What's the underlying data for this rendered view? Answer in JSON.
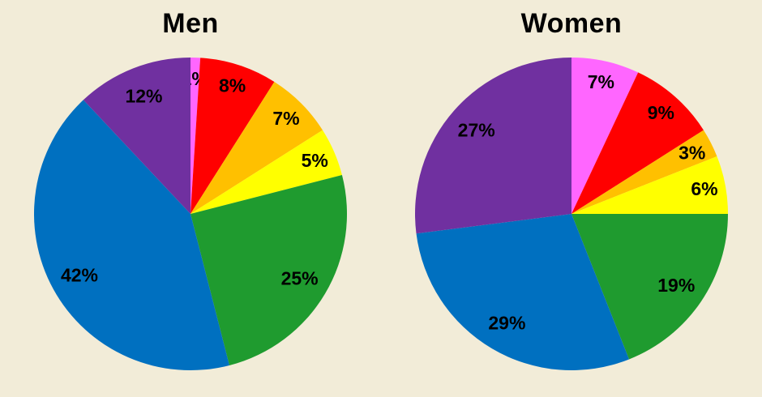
{
  "page": {
    "background_color": "#F2ECD8",
    "text_color": "#000000"
  },
  "chart_data": [
    {
      "type": "pie",
      "title": "Men",
      "values": [
        1,
        8,
        7,
        5,
        25,
        42,
        12
      ],
      "labels": [
        "1%",
        "8%",
        "7%",
        "5%",
        "25%",
        "42%",
        "12%"
      ],
      "colors": [
        "#FF66FF",
        "#FF0000",
        "#FFC000",
        "#FFFF00",
        "#1F9B2F",
        "#0070C0",
        "#7030A0"
      ],
      "segment_names": [
        "magenta",
        "red",
        "orange",
        "yellow",
        "green",
        "blue",
        "purple"
      ],
      "start_angle_deg": 0,
      "direction": "clockwise",
      "legend": "none",
      "label_position": "inside",
      "label_color": "#000000"
    },
    {
      "type": "pie",
      "title": "Women",
      "values": [
        7,
        9,
        3,
        6,
        19,
        29,
        27
      ],
      "labels": [
        "7%",
        "9%",
        "3%",
        "6%",
        "19%",
        "29%",
        "27%"
      ],
      "colors": [
        "#FF66FF",
        "#FF0000",
        "#FFC000",
        "#FFFF00",
        "#1F9B2F",
        "#0070C0",
        "#7030A0"
      ],
      "segment_names": [
        "magenta",
        "red",
        "orange",
        "yellow",
        "green",
        "blue",
        "purple"
      ],
      "start_angle_deg": 0,
      "direction": "clockwise",
      "legend": "none",
      "label_position": "inside",
      "label_color": "#000000"
    }
  ]
}
